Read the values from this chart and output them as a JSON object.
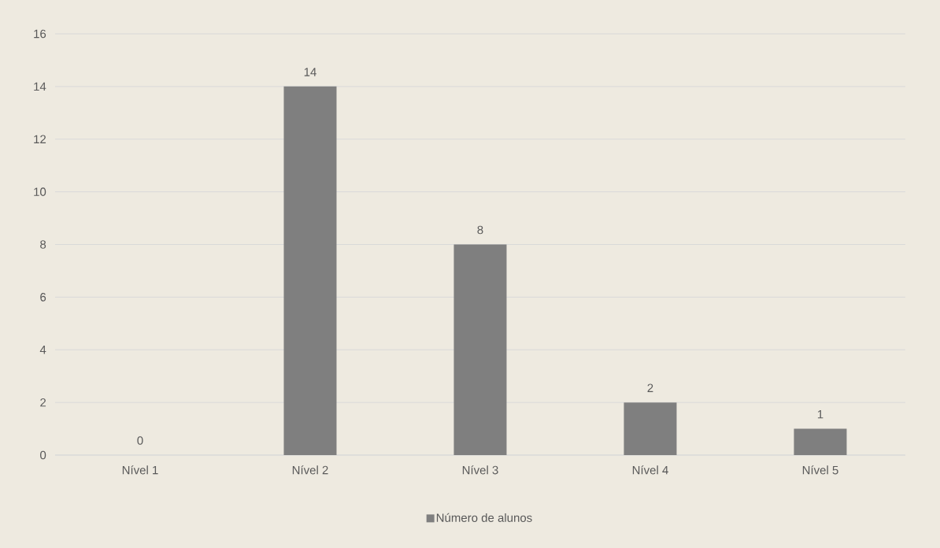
{
  "chart_data": {
    "type": "bar",
    "categories": [
      "Nível 1",
      "Nível 2",
      "Nível 3",
      "Nível 4",
      "Nível 5"
    ],
    "series": [
      {
        "name": "Número de alunos",
        "color": "#7f7f7f",
        "values": [
          0,
          14,
          8,
          2,
          1
        ]
      }
    ],
    "ylim": [
      0,
      16
    ],
    "yticks": [
      0,
      2,
      4,
      6,
      8,
      10,
      12,
      14,
      16
    ],
    "grid": "y",
    "legend": "bottom",
    "data_labels": true
  }
}
